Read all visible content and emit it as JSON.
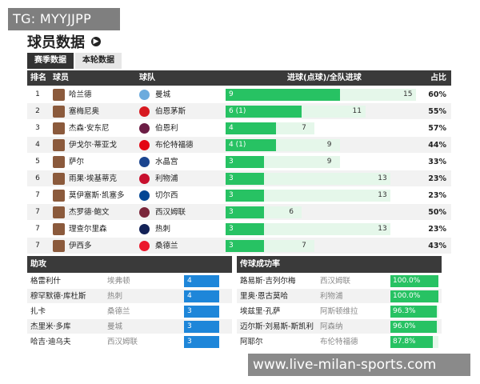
{
  "watermark_top": "TG: MYYJJPP",
  "watermark_bottom": "www.live-milan-sports.com",
  "page_title": "球员数据",
  "tabs": [
    {
      "label": "赛季数据",
      "active": true
    },
    {
      "label": "本轮数据",
      "active": false
    }
  ],
  "table": {
    "headers": {
      "rank": "排名",
      "player": "球员",
      "team": "球队",
      "goals": "进球(点球)/全队进球",
      "pct": "占比"
    },
    "rows": [
      {
        "rank": "1",
        "player": "哈兰德",
        "team": "曼城",
        "goals_label": "9",
        "goals": 9,
        "team_goals_label": "15",
        "team_goals": 15,
        "pct": "60%",
        "crest_color": "#6cabdd"
      },
      {
        "rank": "2",
        "player": "塞梅尼奥",
        "team": "伯恩茅斯",
        "goals_label": "6 (1)",
        "goals": 6,
        "team_goals_label": "11",
        "team_goals": 11,
        "pct": "55%",
        "crest_color": "#d71920"
      },
      {
        "rank": "3",
        "player": "杰森·安东尼",
        "team": "伯恩利",
        "goals_label": "4",
        "goals": 4,
        "team_goals_label": "7",
        "team_goals": 7,
        "pct": "57%",
        "crest_color": "#6c1d45"
      },
      {
        "rank": "4",
        "player": "伊戈尔·蒂亚戈",
        "team": "布伦特福德",
        "goals_label": "4 (1)",
        "goals": 4,
        "team_goals_label": "9",
        "team_goals": 9,
        "pct": "44%",
        "crest_color": "#e30613"
      },
      {
        "rank": "5",
        "player": "萨尔",
        "team": "水晶宫",
        "goals_label": "3",
        "goals": 3,
        "team_goals_label": "9",
        "team_goals": 9,
        "pct": "33%",
        "crest_color": "#1b458f"
      },
      {
        "rank": "6",
        "player": "雨果·埃基蒂克",
        "team": "利物浦",
        "goals_label": "3",
        "goals": 3,
        "team_goals_label": "13",
        "team_goals": 13,
        "pct": "23%",
        "crest_color": "#c8102e"
      },
      {
        "rank": "7",
        "player": "莫伊塞斯·凯塞多",
        "team": "切尔西",
        "goals_label": "3",
        "goals": 3,
        "team_goals_label": "13",
        "team_goals": 13,
        "pct": "23%",
        "crest_color": "#034694"
      },
      {
        "rank": "7",
        "player": "杰罗德·鲍文",
        "team": "西汉姆联",
        "goals_label": "3",
        "goals": 3,
        "team_goals_label": "6",
        "team_goals": 6,
        "pct": "50%",
        "crest_color": "#7a263a"
      },
      {
        "rank": "7",
        "player": "理查尔里森",
        "team": "热刺",
        "goals_label": "3",
        "goals": 3,
        "team_goals_label": "13",
        "team_goals": 13,
        "pct": "23%",
        "crest_color": "#132257"
      },
      {
        "rank": "7",
        "player": "伊西多",
        "team": "桑德兰",
        "goals_label": "3",
        "goals": 3,
        "team_goals_label": "7",
        "team_goals": 7,
        "pct": "43%",
        "crest_color": "#eb172b"
      }
    ],
    "max_team_goals": 15
  },
  "assists": {
    "header": "助攻",
    "rows": [
      {
        "player": "格雷利什",
        "team": "埃弗顿",
        "value": "4"
      },
      {
        "player": "穆罕默德·库杜斯",
        "team": "热刺",
        "value": "4"
      },
      {
        "player": "扎卡",
        "team": "桑德兰",
        "value": "3"
      },
      {
        "player": "杰里米·多库",
        "team": "曼城",
        "value": "3"
      },
      {
        "player": "哈吉·迪乌夫",
        "team": "西汉姆联",
        "value": "3"
      }
    ]
  },
  "passing": {
    "header": "传球成功率",
    "rows": [
      {
        "player": "路易斯·吉列尔梅",
        "team": "西汉姆联",
        "value": "100.0%",
        "pct": 100.0
      },
      {
        "player": "里奥·恩古莫哈",
        "team": "利物浦",
        "value": "100.0%",
        "pct": 100.0
      },
      {
        "player": "埃兹里·孔萨",
        "team": "阿斯顿维拉",
        "value": "96.3%",
        "pct": 96.3
      },
      {
        "player": "迈尔斯·刘易斯-斯凯利",
        "team": "阿森纳",
        "value": "96.0%",
        "pct": 96.0
      },
      {
        "player": "阿耶尔",
        "team": "布伦特福德",
        "value": "87.8%",
        "pct": 87.8
      }
    ]
  }
}
